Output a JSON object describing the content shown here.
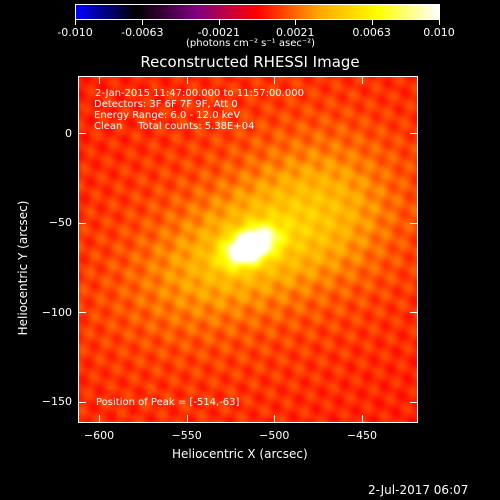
{
  "colorbar": {
    "colormap": [
      "#0000ff",
      "#000000",
      "#800080",
      "#ff0000",
      "#ffa500",
      "#ffff00",
      "#ffffff"
    ],
    "tick_labels": [
      "-0.010",
      "-0.0063",
      "-0.0021",
      "0.0021",
      "0.0063",
      "0.010"
    ],
    "unit_label": "(photons cm⁻² s⁻¹ asec⁻²)"
  },
  "chart_data": {
    "type": "heatmap",
    "title": "Reconstructed RHESSI Image",
    "xlabel": "Heliocentric X (arcsec)",
    "ylabel": "Heliocentric Y (arcsec)",
    "xlim": [
      -612,
      -418
    ],
    "ylim": [
      -162,
      32
    ],
    "x_ticks": [
      -600,
      -550,
      -500,
      -450
    ],
    "y_ticks": [
      0,
      -50,
      -100,
      -150
    ],
    "peak": {
      "x": -514,
      "y": -63
    },
    "color_range": [
      -0.01,
      0.01
    ],
    "annotations": [
      "2-Jan-2015 11:47:00.000 to 11:57:00.000",
      "Detectors: 3F 6F 7F 9F, Att 0",
      "Energy Range: 6.0 - 12.0 keV",
      "Clean     Total counts: 5.38E+04"
    ],
    "peak_label": "Position of Peak = [-514,-63]"
  },
  "footer": {
    "date": "2-Jul-2017 06:07"
  }
}
